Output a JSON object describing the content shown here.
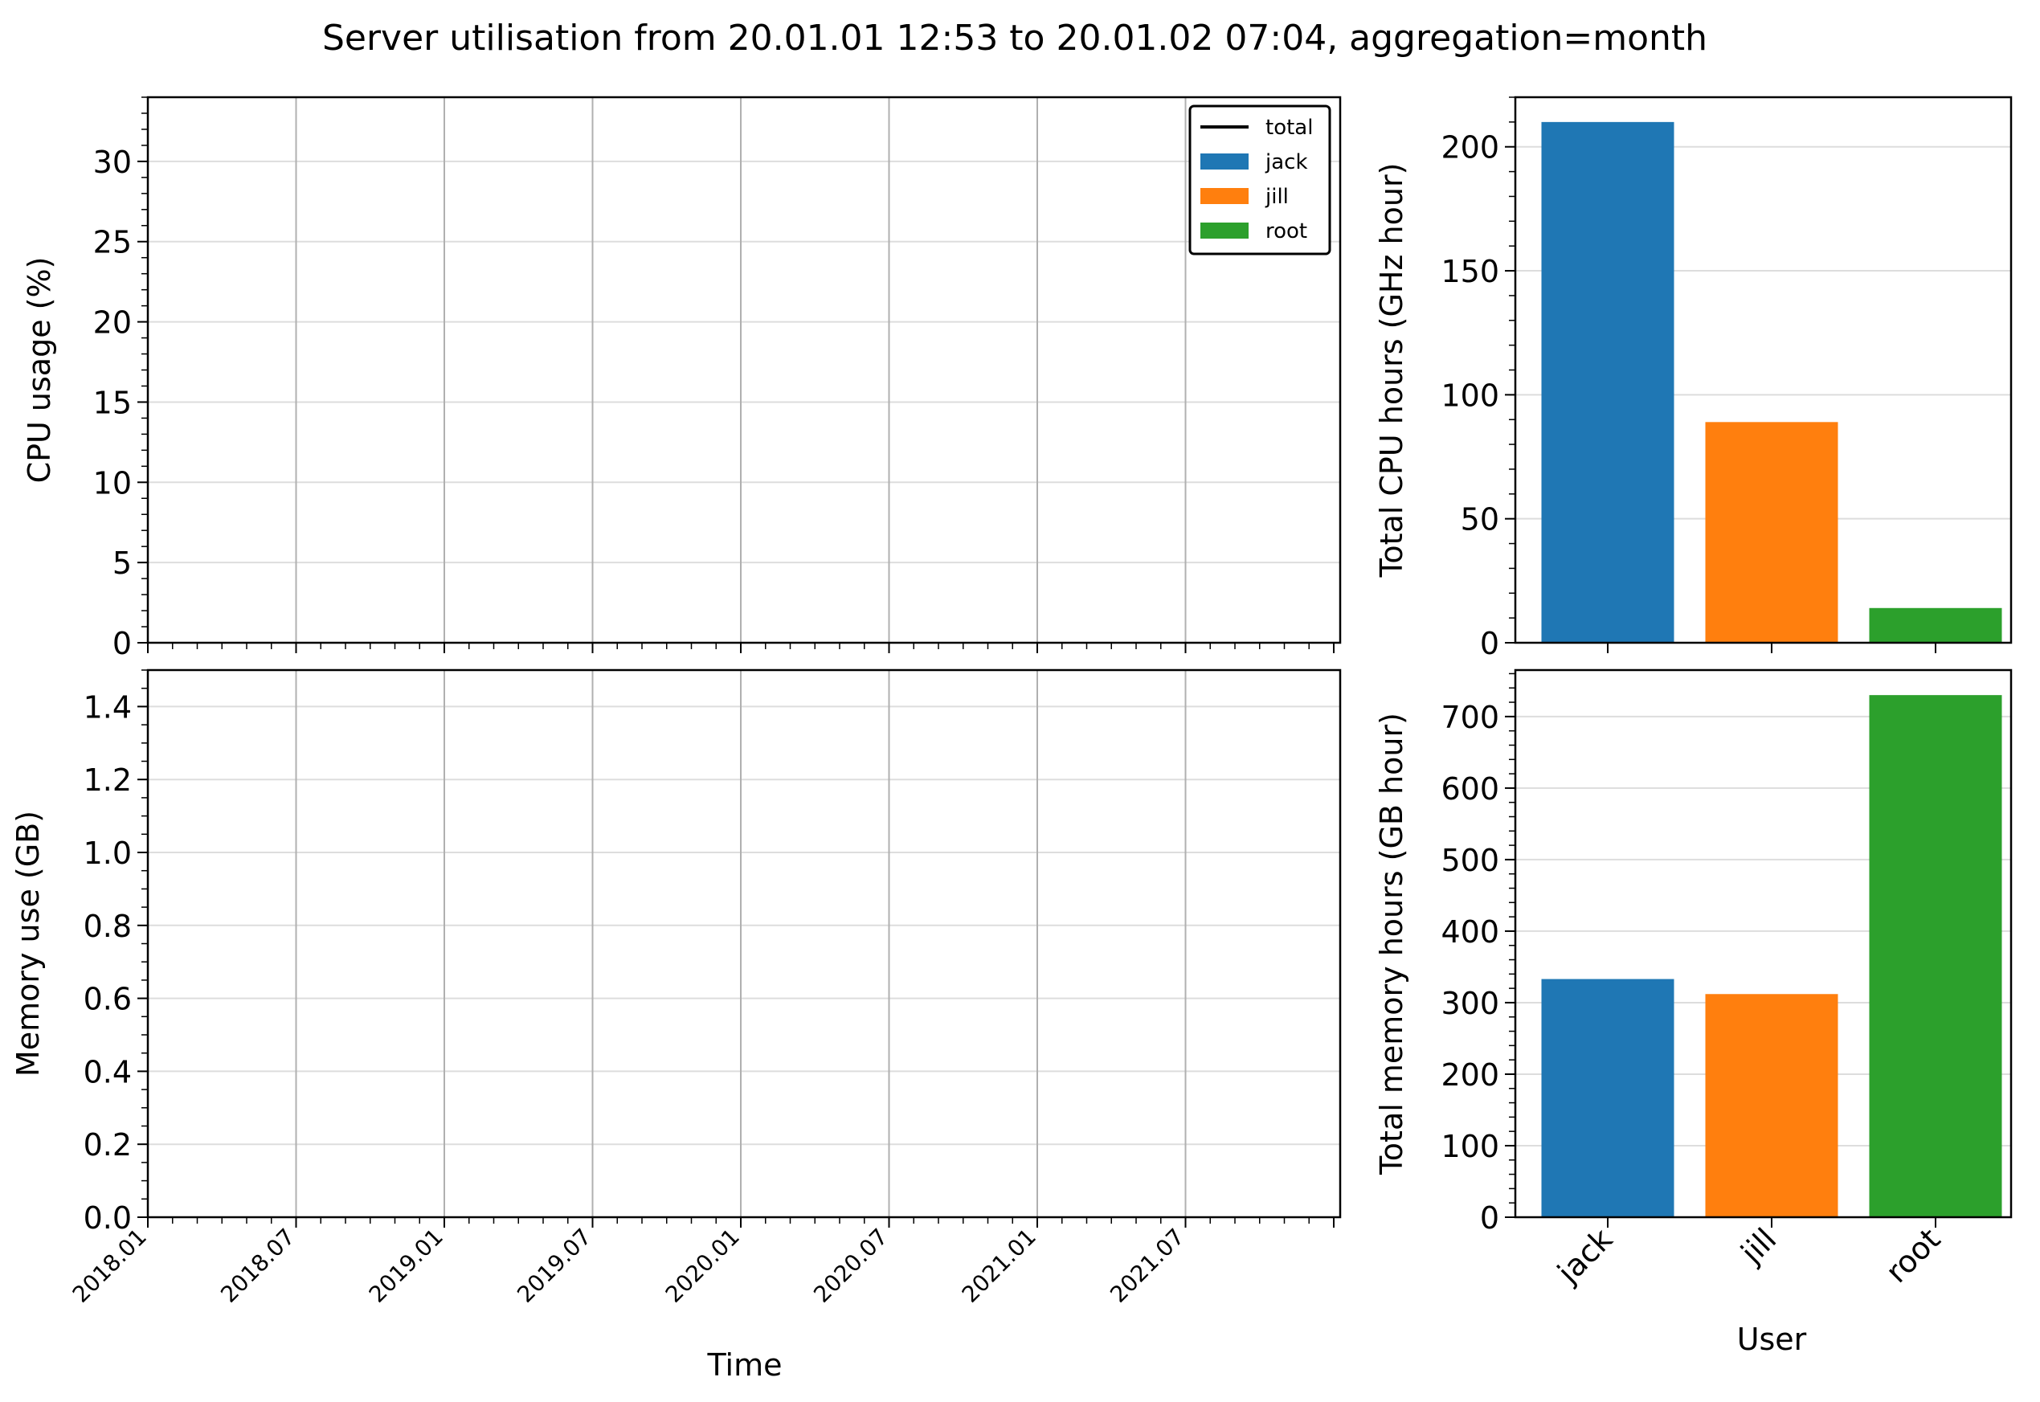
{
  "figure": {
    "title": "Server utilisation from 20.01.01 12:53 to 20.01.02 07:04, aggregation=month"
  },
  "colors": {
    "jack": "#1f77b4",
    "jill": "#ff7f0e",
    "root": "#2ca02c",
    "total": "#000000",
    "grid_major": "#b0b0b0",
    "grid_minor": "#dddddd"
  },
  "chart_data": [
    {
      "id": "cpu_time",
      "type": "line",
      "title": "",
      "xlabel": "",
      "ylabel": "CPU usage (%)",
      "ylim": [
        0,
        34
      ],
      "yticks": [
        0,
        5,
        10,
        15,
        20,
        25,
        30
      ],
      "xticks": [
        "2018.01",
        "2018.07",
        "2019.01",
        "2019.07",
        "2020.01",
        "2020.07",
        "2021.01",
        "2021.07"
      ],
      "legend": {
        "placement": "top-right",
        "entries": [
          {
            "label": "total",
            "kind": "line",
            "color": "#000000"
          },
          {
            "label": "jack",
            "kind": "patch",
            "color": "#1f77b4"
          },
          {
            "label": "jill",
            "kind": "patch",
            "color": "#ff7f0e"
          },
          {
            "label": "root",
            "kind": "patch",
            "color": "#2ca02c"
          }
        ]
      },
      "series": [],
      "grid": true
    },
    {
      "id": "cpu_bar",
      "type": "bar",
      "ylabel": "Total CPU hours (GHz hour)",
      "categories": [
        "jack",
        "jill",
        "root"
      ],
      "values": [
        210,
        89,
        14
      ],
      "ylim": [
        0,
        220
      ],
      "yticks": [
        0,
        50,
        100,
        150,
        200
      ],
      "grid": true
    },
    {
      "id": "mem_time",
      "type": "line",
      "xlabel": "Time",
      "ylabel": "Memory use (GB)",
      "ylim": [
        0,
        1.5
      ],
      "yticks": [
        "0.0",
        "0.2",
        "0.4",
        "0.6",
        "0.8",
        "1.0",
        "1.2",
        "1.4"
      ],
      "xticks": [
        "2018.01",
        "2018.07",
        "2019.01",
        "2019.07",
        "2020.01",
        "2020.07",
        "2021.01",
        "2021.07"
      ],
      "series": [],
      "grid": true
    },
    {
      "id": "mem_bar",
      "type": "bar",
      "xlabel": "User",
      "ylabel": "Total memory hours (GB hour)",
      "categories": [
        "jack",
        "jill",
        "root"
      ],
      "values": [
        333,
        312,
        730
      ],
      "ylim": [
        0,
        765
      ],
      "yticks": [
        0,
        100,
        200,
        300,
        400,
        500,
        600,
        700
      ],
      "grid": true
    }
  ]
}
